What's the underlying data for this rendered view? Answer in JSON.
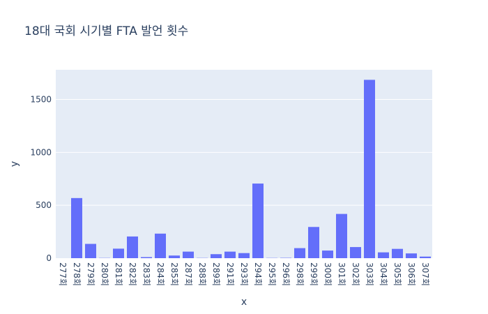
{
  "chart_data": {
    "type": "bar",
    "title": "18대 국회 시기별 FTA 발언 횟수",
    "xlabel": "x",
    "ylabel": "y",
    "categories": [
      "277회",
      "278회",
      "279회",
      "280회",
      "281회",
      "282회",
      "283회",
      "284회",
      "285회",
      "287회",
      "288회",
      "289회",
      "291회",
      "293회",
      "294회",
      "295회",
      "296회",
      "298회",
      "299회",
      "300회",
      "301회",
      "302회",
      "303회",
      "304회",
      "305회",
      "306회",
      "307회"
    ],
    "values": [
      0,
      568,
      135,
      2,
      90,
      205,
      10,
      232,
      25,
      62,
      2,
      38,
      62,
      48,
      705,
      2,
      3,
      95,
      295,
      72,
      418,
      105,
      1685,
      55,
      88,
      45,
      15
    ],
    "ylim": [
      0,
      1780
    ],
    "yticks": [
      0,
      500,
      1000,
      1500
    ],
    "ytick_labels": [
      "0",
      "500",
      "1000",
      "1500"
    ],
    "grid": true,
    "colors": {
      "bar": "#636efa",
      "plot_bg": "#e5ecf6",
      "grid": "#ffffff",
      "text": "#2a3f5f"
    }
  }
}
